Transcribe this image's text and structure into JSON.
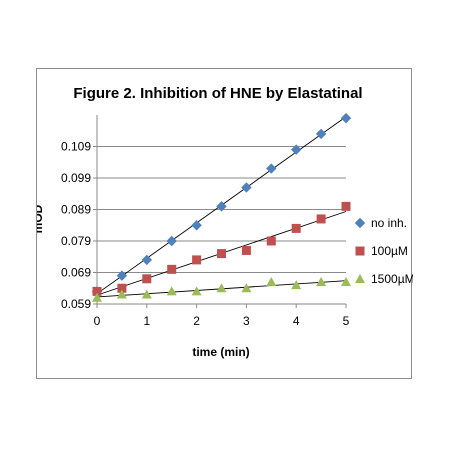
{
  "chart_data": {
    "type": "scatter",
    "title": "Figure 2. Inhibition of HNE by Elastatinal",
    "xlabel": "time (min)",
    "ylabel": "mOD",
    "xlim": [
      0,
      5
    ],
    "ylim": [
      0.059,
      0.119
    ],
    "xticks": [
      0,
      1,
      2,
      3,
      4,
      5
    ],
    "yticks": [
      0.059,
      0.069,
      0.079,
      0.089,
      0.099,
      0.109
    ],
    "ytick_labels": [
      "0.059",
      "0.069",
      "0.079",
      "0.089",
      "0.099",
      "0.109"
    ],
    "grid": "horizontal major gridlines",
    "legend_position": "right",
    "trendlines": true,
    "x": [
      0,
      0.5,
      1,
      1.5,
      2,
      2.5,
      3,
      3.5,
      4,
      4.5,
      5
    ],
    "series": [
      {
        "name": "no inh.",
        "marker": "diamond",
        "color": "#4F81BD",
        "values": [
          0.063,
          0.068,
          0.073,
          0.079,
          0.084,
          0.09,
          0.096,
          0.102,
          0.108,
          0.113,
          0.118
        ]
      },
      {
        "name": "100µM",
        "marker": "square",
        "color": "#C0504D",
        "values": [
          0.063,
          0.064,
          0.067,
          0.07,
          0.073,
          0.075,
          0.076,
          0.079,
          0.083,
          0.086,
          0.09
        ]
      },
      {
        "name": "1500µM",
        "marker": "triangle",
        "color": "#9BBB59",
        "values": [
          0.061,
          0.062,
          0.062,
          0.063,
          0.063,
          0.064,
          0.064,
          0.066,
          0.065,
          0.066,
          0.066
        ]
      }
    ]
  }
}
